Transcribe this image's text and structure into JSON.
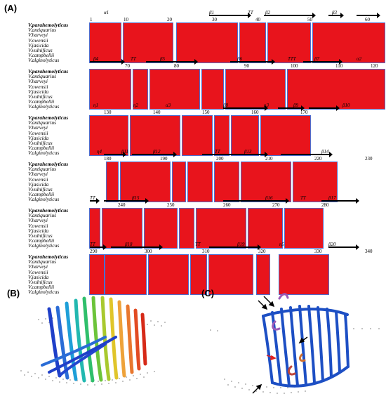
{
  "panels": {
    "a": "(A)",
    "b": "(B)",
    "c": "(C)"
  },
  "species": [
    "V.parahemolyticus",
    "V.antiquarius",
    "V.harveyi",
    "V.owensii",
    "V.jasicida",
    "V.vulnificus",
    "V.campbellii",
    "V.alginolyticus"
  ],
  "blocks": [
    {
      "structure": [
        "α1",
        "β1",
        "TT",
        "β2",
        "β3"
      ],
      "numbers": [
        "1",
        "10",
        "20",
        "30",
        "40",
        "50",
        "60"
      ]
    },
    {
      "structure": [
        "β4",
        "TT",
        "β5",
        "β6",
        "TTT",
        "β7",
        "α2"
      ],
      "numbers": [
        "70",
        "80",
        "90",
        "100",
        "110",
        "120"
      ]
    },
    {
      "structure": [
        "η1",
        "η2",
        "α3",
        "β8",
        "η3",
        "β9",
        "β10"
      ],
      "numbers": [
        "130",
        "140",
        "150",
        "160",
        "170"
      ]
    },
    {
      "structure": [
        "η4",
        "β11",
        "β12",
        "TT",
        "β13",
        "β14"
      ],
      "numbers": [
        "180",
        "190",
        "200",
        "210",
        "220",
        "230"
      ]
    },
    {
      "structure": [
        "TT",
        "β15",
        "β16",
        "TT",
        "β17"
      ],
      "numbers": [
        "240",
        "250",
        "260",
        "270",
        "280"
      ]
    },
    {
      "structure": [
        "TT",
        "β18",
        "TT",
        "β19",
        "η5",
        "β20"
      ],
      "numbers": [
        "290",
        "300",
        "310",
        "320",
        "330",
        "340"
      ]
    }
  ],
  "colors": {
    "conserved": "#e8141c",
    "frame": "#4d6fd1",
    "backbone_c": "#1d4fc4"
  },
  "icons": {
    "panel_b": "protein-barrel-rainbow-icon",
    "panel_c": "protein-barrel-blue-icon",
    "markers": "arrow-icon"
  }
}
